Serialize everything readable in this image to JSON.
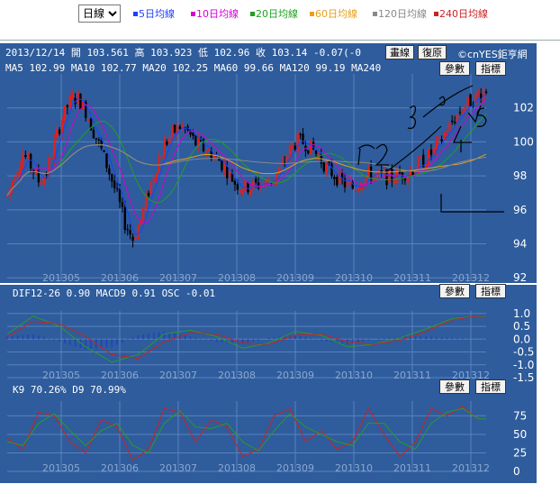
{
  "toolbar": {
    "period": "日線",
    "ma_options": [
      {
        "label": "5日均線",
        "color": "#1f3fff"
      },
      {
        "label": "10日均線",
        "color": "#d400d4"
      },
      {
        "label": "20日均線",
        "color": "#1fa01f"
      },
      {
        "label": "60日均線",
        "color": "#e6a01a"
      },
      {
        "label": "120日均線",
        "color": "#888888"
      },
      {
        "label": "240日均線",
        "color": "#cc2222"
      }
    ]
  },
  "header": {
    "quote": "2013/12/14 開 103.561 高 103.923 低 102.96 收 103.14 -0.07(-0",
    "draw_button": "畫線",
    "restore_button": "復原",
    "brand": "©cnYES鉅亨網"
  },
  "price_panel": {
    "ma_text": "MA5 102.99   MA10 102.77   MA20 102.25   MA60 99.66   MA120 99.19   MA240",
    "params_button": "參數",
    "indicator_button": "指標"
  },
  "macd_panel": {
    "legend": "DIF12-26 0.90   MACD9 0.91   OSC -0.01",
    "params_button": "參數",
    "indicator_button": "指標"
  },
  "kd_panel": {
    "legend": "K9 70.26%   D9 70.99%",
    "params_button": "參數",
    "indicator_button": "指標"
  },
  "chart_data": [
    {
      "type": "candlestick",
      "x_ticks": [
        "201305",
        "201306",
        "201307",
        "201308",
        "201309",
        "201310",
        "201311",
        "201312"
      ],
      "y_ticks": [
        92,
        94,
        96,
        98,
        100,
        102
      ],
      "ylim": [
        91.8,
        104
      ],
      "price_path": [
        [
          0,
          96.8
        ],
        [
          3,
          98.2
        ],
        [
          6,
          99.3
        ],
        [
          9,
          98.6
        ],
        [
          12,
          97.7
        ],
        [
          15,
          98.2
        ],
        [
          18,
          99.9
        ],
        [
          21,
          101.4
        ],
        [
          24,
          102.4
        ],
        [
          27,
          102.6
        ],
        [
          30,
          101.8
        ],
        [
          33,
          100.6
        ],
        [
          36,
          99.5
        ],
        [
          39,
          98.2
        ],
        [
          42,
          96.8
        ],
        [
          45,
          95.2
        ],
        [
          48,
          94.3
        ],
        [
          51,
          95.4
        ],
        [
          54,
          97.1
        ],
        [
          57,
          98.6
        ],
        [
          60,
          99.8
        ],
        [
          63,
          100.5
        ],
        [
          66,
          100.9
        ],
        [
          69,
          100.6
        ],
        [
          72,
          99.9
        ],
        [
          75,
          99.6
        ],
        [
          78,
          99.3
        ],
        [
          81,
          98.9
        ],
        [
          84,
          98.3
        ],
        [
          87,
          97.6
        ],
        [
          90,
          97.3
        ],
        [
          93,
          97.4
        ],
        [
          96,
          97.5
        ],
        [
          99,
          97.6
        ],
        [
          102,
          97.9
        ],
        [
          105,
          98.6
        ],
        [
          108,
          99.5
        ],
        [
          111,
          100.1
        ],
        [
          114,
          99.9
        ],
        [
          117,
          99.5
        ],
        [
          120,
          98.9
        ],
        [
          123,
          98.3
        ],
        [
          126,
          97.9
        ],
        [
          129,
          97.5
        ],
        [
          132,
          97.3
        ],
        [
          135,
          97.7
        ],
        [
          138,
          98.1
        ],
        [
          141,
          98.0
        ],
        [
          144,
          97.9
        ],
        [
          147,
          97.9
        ],
        [
          150,
          98.1
        ],
        [
          153,
          98.2
        ],
        [
          156,
          98.5
        ],
        [
          159,
          98.9
        ],
        [
          162,
          99.3
        ],
        [
          165,
          99.9
        ],
        [
          168,
          100.7
        ],
        [
          171,
          101.4
        ],
        [
          174,
          102.0
        ],
        [
          177,
          102.4
        ],
        [
          180,
          102.8
        ],
        [
          183,
          103.1
        ]
      ],
      "ma_lines": [
        {
          "name": "MA5",
          "color": "#1f3fff"
        },
        {
          "name": "MA10",
          "color": "#d400d4"
        },
        {
          "name": "MA20",
          "color": "#1fa01f"
        },
        {
          "name": "MA60",
          "color": "#e6a01a"
        },
        {
          "name": "MA120",
          "color": "#888888"
        }
      ],
      "annotations_handwritten": [
        "3",
        "4",
        "5",
        "1",
        "2",
        "4"
      ]
    },
    {
      "type": "line+bar",
      "y_ticks": [
        1.0,
        0.5,
        0.0,
        -0.5,
        -1.0,
        -1.5
      ],
      "ylim": [
        -1.5,
        1.1
      ],
      "x_ticks": [
        "201305",
        "201306",
        "201307",
        "201308",
        "201309",
        "201310",
        "201311",
        "201312"
      ],
      "series": [
        {
          "name": "DIF12-26",
          "color": "#2a9a2a",
          "values_path": [
            [
              0,
              0.2
            ],
            [
              10,
              0.9
            ],
            [
              20,
              0.5
            ],
            [
              30,
              -0.3
            ],
            [
              40,
              -0.9
            ],
            [
              50,
              -0.6
            ],
            [
              60,
              0.2
            ],
            [
              70,
              0.35
            ],
            [
              80,
              0.1
            ],
            [
              90,
              -0.35
            ],
            [
              100,
              -0.15
            ],
            [
              110,
              0.3
            ],
            [
              120,
              0.15
            ],
            [
              130,
              -0.3
            ],
            [
              140,
              -0.2
            ],
            [
              150,
              0.05
            ],
            [
              160,
              0.4
            ],
            [
              170,
              0.8
            ],
            [
              180,
              0.9
            ]
          ]
        },
        {
          "name": "MACD9",
          "color": "#cc2222",
          "values_path": [
            [
              0,
              0.1
            ],
            [
              10,
              0.7
            ],
            [
              20,
              0.6
            ],
            [
              30,
              0.1
            ],
            [
              40,
              -0.6
            ],
            [
              50,
              -0.75
            ],
            [
              60,
              -0.1
            ],
            [
              70,
              0.25
            ],
            [
              80,
              0.2
            ],
            [
              90,
              -0.15
            ],
            [
              100,
              -0.2
            ],
            [
              110,
              0.15
            ],
            [
              120,
              0.2
            ],
            [
              130,
              -0.1
            ],
            [
              140,
              -0.2
            ],
            [
              150,
              -0.05
            ],
            [
              160,
              0.3
            ],
            [
              170,
              0.75
            ],
            [
              180,
              0.91
            ]
          ]
        }
      ]
    },
    {
      "type": "line",
      "y_ticks": [
        75,
        50,
        25,
        0
      ],
      "ylim": [
        0,
        95
      ],
      "x_ticks": [
        "201305",
        "201306",
        "201307",
        "201308",
        "201309",
        "201310",
        "201311",
        "201312"
      ],
      "series": [
        {
          "name": "K9",
          "color": "#cc2222",
          "values_path": [
            [
              0,
              45
            ],
            [
              6,
              30
            ],
            [
              12,
              80
            ],
            [
              18,
              75
            ],
            [
              24,
              40
            ],
            [
              30,
              25
            ],
            [
              36,
              70
            ],
            [
              42,
              60
            ],
            [
              48,
              15
            ],
            [
              54,
              30
            ],
            [
              60,
              85
            ],
            [
              66,
              80
            ],
            [
              72,
              40
            ],
            [
              78,
              70
            ],
            [
              84,
              60
            ],
            [
              90,
              20
            ],
            [
              96,
              30
            ],
            [
              102,
              75
            ],
            [
              108,
              85
            ],
            [
              114,
              40
            ],
            [
              120,
              55
            ],
            [
              126,
              30
            ],
            [
              132,
              40
            ],
            [
              138,
              85
            ],
            [
              144,
              50
            ],
            [
              150,
              20
            ],
            [
              156,
              40
            ],
            [
              162,
              85
            ],
            [
              168,
              75
            ],
            [
              174,
              88
            ],
            [
              180,
              70
            ]
          ]
        },
        {
          "name": "D9",
          "color": "#2a9a2a",
          "values_path": [
            [
              0,
              40
            ],
            [
              6,
              35
            ],
            [
              12,
              65
            ],
            [
              18,
              78
            ],
            [
              24,
              55
            ],
            [
              30,
              35
            ],
            [
              36,
              55
            ],
            [
              42,
              65
            ],
            [
              48,
              35
            ],
            [
              54,
              25
            ],
            [
              60,
              65
            ],
            [
              66,
              82
            ],
            [
              72,
              60
            ],
            [
              78,
              58
            ],
            [
              84,
              65
            ],
            [
              90,
              40
            ],
            [
              96,
              28
            ],
            [
              102,
              55
            ],
            [
              108,
              78
            ],
            [
              114,
              60
            ],
            [
              120,
              50
            ],
            [
              126,
              40
            ],
            [
              132,
              35
            ],
            [
              138,
              65
            ],
            [
              144,
              65
            ],
            [
              150,
              40
            ],
            [
              156,
              30
            ],
            [
              162,
              65
            ],
            [
              168,
              80
            ],
            [
              174,
              85
            ],
            [
              180,
              71
            ]
          ]
        }
      ]
    }
  ]
}
